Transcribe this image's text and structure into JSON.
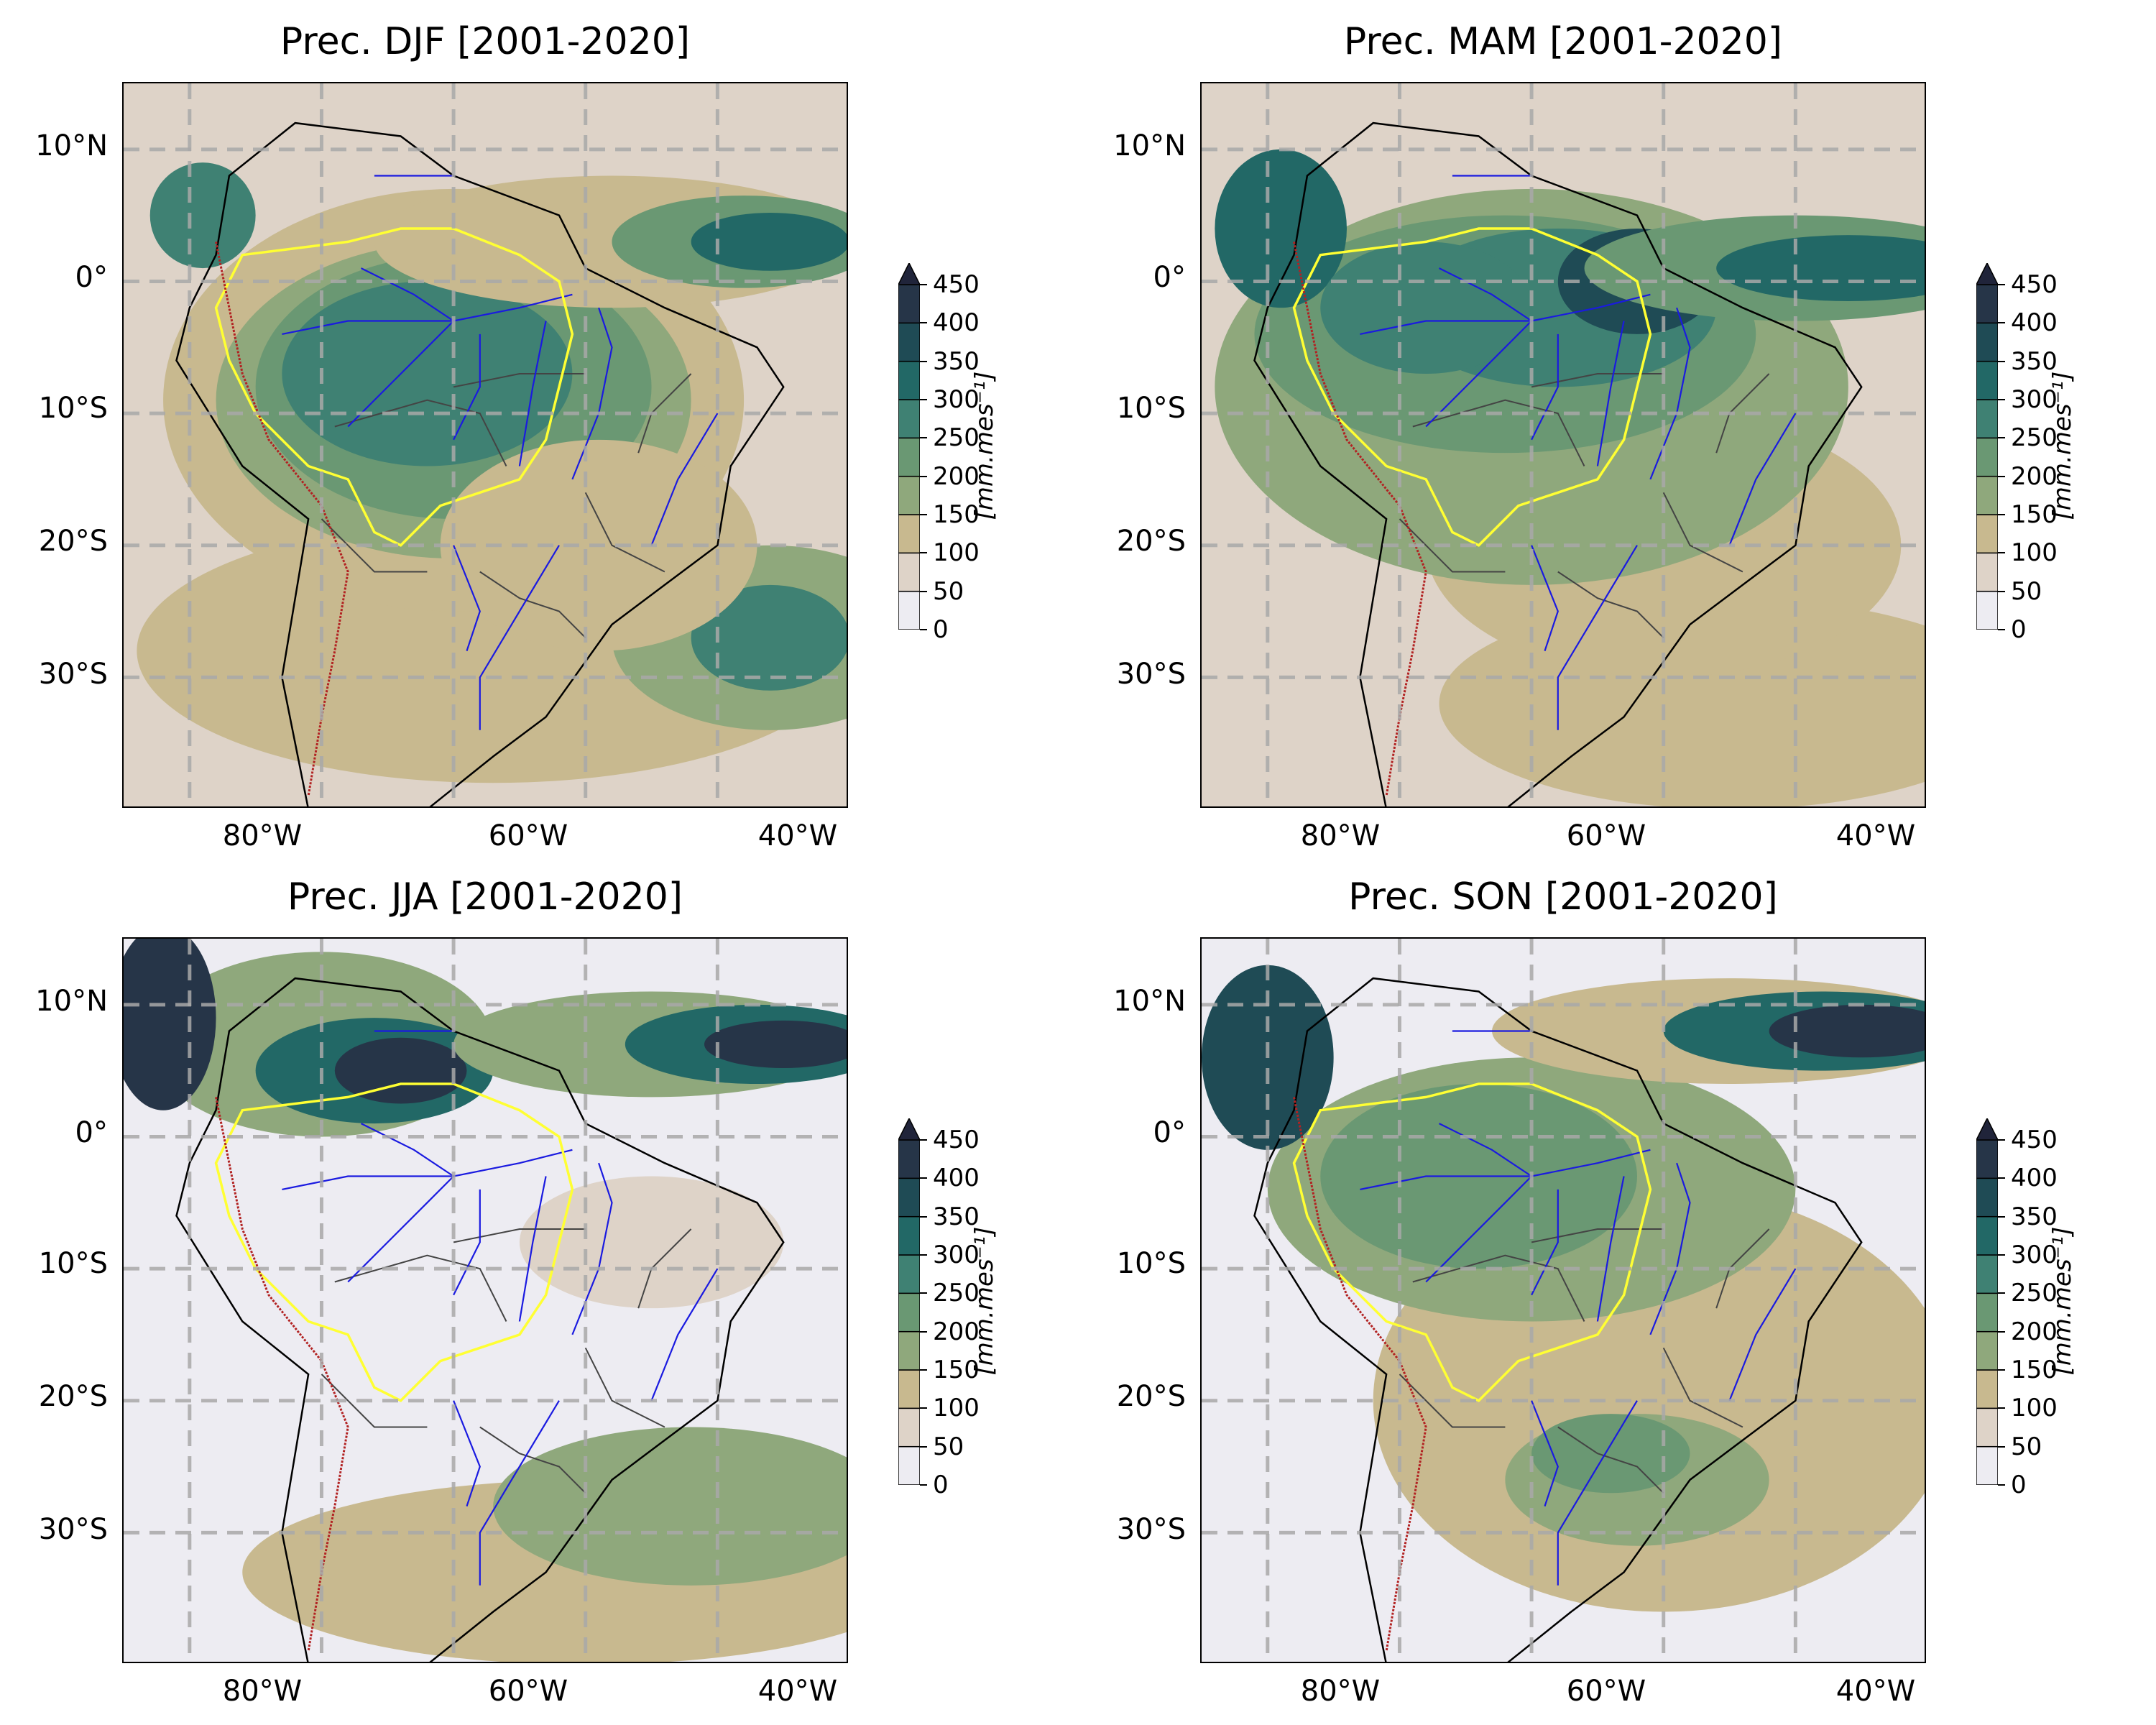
{
  "panels": [
    {
      "title": "Prec. DJF [2001-2020]",
      "season": "DJF"
    },
    {
      "title": "Prec. MAM [2001-2020]",
      "season": "MAM"
    },
    {
      "title": "Prec. JJA [2001-2020]",
      "season": "JJA"
    },
    {
      "title": "Prec. SON [2001-2020]",
      "season": "SON"
    }
  ],
  "axes": {
    "lat_labels": [
      "10°N",
      "0°",
      "10°S",
      "20°S",
      "30°S"
    ],
    "lon_labels": [
      "80°W",
      "60°W",
      "40°W"
    ]
  },
  "colorbar": {
    "ticks": [
      "0",
      "50",
      "100",
      "150",
      "200",
      "250",
      "300",
      "350",
      "400",
      "450"
    ],
    "unit": "[mm.mes⁻¹]",
    "extend": "max",
    "colors": [
      "#edecf2",
      "#ded3c8",
      "#c8b98f",
      "#8fa87c",
      "#6a9873",
      "#3f8173",
      "#226866",
      "#1f4b55",
      "#263548",
      "#20243a"
    ]
  },
  "layers": {
    "river_color": "#1a1ae0",
    "basin_outline_color": "#ffff33",
    "andes_contour_color": "#b22222",
    "coastline_color": "#000000",
    "state_border_color": "#444444",
    "gridline_color": "#a9a9a9"
  }
}
